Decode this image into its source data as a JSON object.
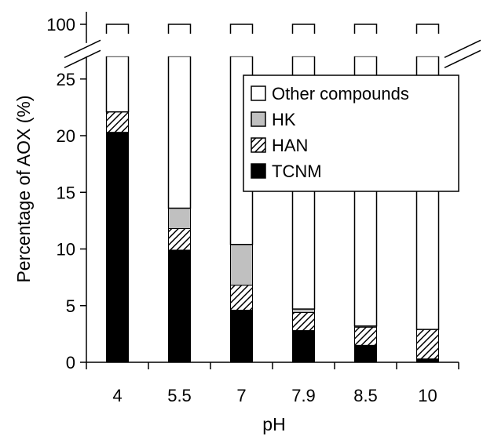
{
  "chart_data": {
    "type": "bar",
    "stacked": true,
    "broken_y_axis": true,
    "xlabel": "pH",
    "ylabel": "Percentage of AOX (%)",
    "categories": [
      "4",
      "5.5",
      "7",
      "7.9",
      "8.5",
      "10"
    ],
    "ylim_lower": [
      0,
      27
    ],
    "ylim_upper_tick": 100,
    "yticks": [
      "0",
      "5",
      "10",
      "15",
      "20",
      "25",
      "100"
    ],
    "series": [
      {
        "name": "TCNM",
        "values": [
          20.3,
          9.9,
          4.6,
          2.8,
          1.5,
          0.3
        ],
        "fill": "#000000"
      },
      {
        "name": "HAN",
        "values": [
          1.8,
          1.9,
          2.2,
          1.6,
          1.6,
          2.6
        ],
        "fill": "hatch"
      },
      {
        "name": "HK",
        "values": [
          0.0,
          1.8,
          3.6,
          0.3,
          0.1,
          0.0
        ],
        "fill": "#c0c0c0"
      },
      {
        "name": "Other compounds",
        "values": [
          77.9,
          86.4,
          89.6,
          95.3,
          96.8,
          97.1
        ],
        "fill": "#ffffff"
      }
    ],
    "legend": {
      "position": "top-right",
      "order": [
        "Other compounds",
        "HK",
        "HAN",
        "TCNM"
      ]
    },
    "colors": {
      "TCNM": "#000000",
      "HK": "#c0c0c0",
      "Other compounds": "#ffffff",
      "HAN": "hatch"
    }
  }
}
